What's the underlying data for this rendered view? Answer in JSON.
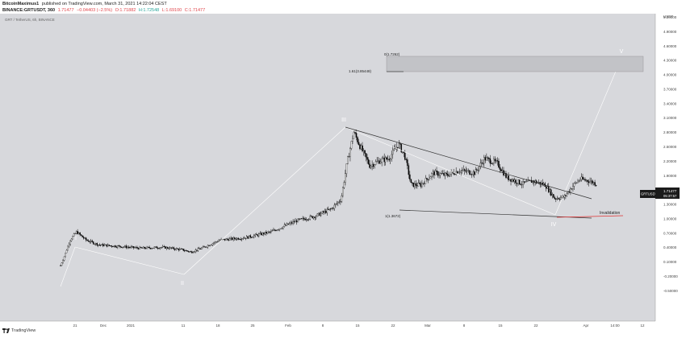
{
  "header": {
    "author": "BitcoinMaximus1",
    "published": "published on TradingView.com, March 31, 2021 14:22:04 CEST",
    "symbol_line": "BINANCE:GRTUSDT, 360",
    "last": "1.71477",
    "change": "−0.04403 (−2.5%)",
    "open": "O:1.71882",
    "high": "H:1.72548",
    "low": "L:1.69100",
    "close": "C:1.71477"
  },
  "footer": {
    "brand": "TradingView"
  },
  "colors": {
    "background": "#ffffff",
    "chart_area": "#d7d8dc",
    "candles": "#000000",
    "trendline": "#333333",
    "wave_line": "#ffffff",
    "invalidation": "#e03030",
    "box": "#c2c3c7",
    "price_tag": "#1b1b1b"
  },
  "chart_data": {
    "type": "candlestick",
    "title": "GRT / TetherUS, 6h, BINANCE",
    "y_axis": {
      "ticks": [
        "5.20000",
        "4.90000",
        "4.60000",
        "4.30000",
        "4.00000",
        "3.70000",
        "3.40000",
        "3.10000",
        "2.80000",
        "2.50000",
        "2.20000",
        "1.90000",
        "1.60000",
        "1.30000",
        "1.00000",
        "0.70000",
        "0.40000",
        "0.10000",
        "-0.20000",
        "-0.50000"
      ],
      "top_label": "USDT"
    },
    "x_axis": {
      "ticks": [
        "21",
        "Dec",
        "2021",
        "11",
        "18",
        "25",
        "Feb",
        "8",
        "15",
        "22",
        "Mar",
        "8",
        "15",
        "22",
        "Apr",
        "14:00",
        "12"
      ]
    },
    "current_price_tag": {
      "symbol": "GRTUSDT",
      "price": "1.71477",
      "countdown": "05:37:57"
    },
    "price_path": [
      [
        0.0,
        0.02
      ],
      [
        0.01,
        0.18
      ],
      [
        0.03,
        0.55
      ],
      [
        0.05,
        0.72
      ],
      [
        0.08,
        0.55
      ],
      [
        0.12,
        0.45
      ],
      [
        0.18,
        0.42
      ],
      [
        0.25,
        0.38
      ],
      [
        0.32,
        0.4
      ],
      [
        0.38,
        0.35
      ],
      [
        0.41,
        0.3
      ],
      [
        0.45,
        0.4
      ],
      [
        0.5,
        0.55
      ],
      [
        0.58,
        0.6
      ],
      [
        0.66,
        0.72
      ],
      [
        0.74,
        0.95
      ],
      [
        0.8,
        1.05
      ],
      [
        0.85,
        1.2
      ],
      [
        0.88,
        1.4
      ],
      [
        0.9,
        2.2
      ],
      [
        0.92,
        2.8
      ],
      [
        0.94,
        2.5
      ],
      [
        0.97,
        2.1
      ],
      [
        1.0,
        2.2
      ],
      [
        1.03,
        2.25
      ],
      [
        1.06,
        2.55
      ],
      [
        1.08,
        2.3
      ],
      [
        1.1,
        1.7
      ],
      [
        1.13,
        1.7
      ],
      [
        1.17,
        1.95
      ],
      [
        1.21,
        1.9
      ],
      [
        1.25,
        2.0
      ],
      [
        1.3,
        1.95
      ],
      [
        1.33,
        2.25
      ],
      [
        1.37,
        2.15
      ],
      [
        1.4,
        1.85
      ],
      [
        1.45,
        1.72
      ],
      [
        1.48,
        1.78
      ],
      [
        1.52,
        1.7
      ],
      [
        1.55,
        1.42
      ],
      [
        1.58,
        1.45
      ],
      [
        1.61,
        1.7
      ],
      [
        1.63,
        1.82
      ],
      [
        1.66,
        1.78
      ],
      [
        1.68,
        1.72
      ]
    ],
    "annotations": {
      "waves": [
        "I",
        "II",
        "III",
        "IV",
        "V"
      ],
      "fib_upper": "1.61(3.85448)",
      "box_top_label": "0(1.7262)",
      "fib_lower": "1(1.3672)",
      "invalidation": "Invalidation"
    }
  }
}
